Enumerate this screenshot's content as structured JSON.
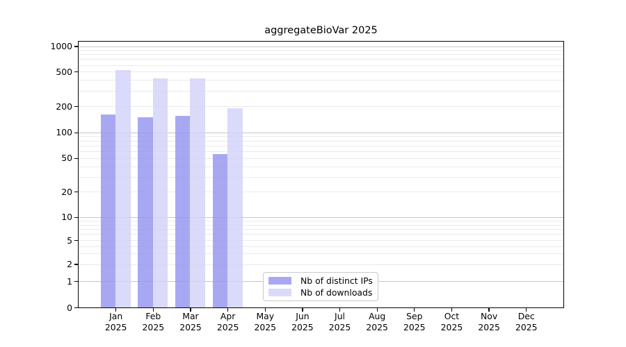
{
  "chart_data": {
    "type": "bar",
    "title": "aggregateBioVar 2025",
    "categories": [
      {
        "month": "Jan",
        "year": "2025"
      },
      {
        "month": "Feb",
        "year": "2025"
      },
      {
        "month": "Mar",
        "year": "2025"
      },
      {
        "month": "Apr",
        "year": "2025"
      },
      {
        "month": "May",
        "year": "2025"
      },
      {
        "month": "Jun",
        "year": "2025"
      },
      {
        "month": "Jul",
        "year": "2025"
      },
      {
        "month": "Aug",
        "year": "2025"
      },
      {
        "month": "Sep",
        "year": "2025"
      },
      {
        "month": "Oct",
        "year": "2025"
      },
      {
        "month": "Nov",
        "year": "2025"
      },
      {
        "month": "Dec",
        "year": "2025"
      }
    ],
    "series": [
      {
        "name": "Nb of distinct IPs",
        "color": "#a8a8f2",
        "values": [
          160,
          150,
          155,
          56,
          0,
          0,
          0,
          0,
          0,
          0,
          0,
          0
        ]
      },
      {
        "name": "Nb of downloads",
        "color": "#dadafa",
        "values": [
          520,
          420,
          420,
          190,
          0,
          0,
          0,
          0,
          0,
          0,
          0,
          0
        ]
      }
    ],
    "yticks": [
      0,
      1,
      2,
      5,
      10,
      20,
      50,
      100,
      200,
      500,
      1000
    ],
    "ylim": [
      0,
      1000
    ],
    "yscale": "log-like",
    "xlabel": "",
    "ylabel": "",
    "grid": "on",
    "legend_position": "bottom-center"
  }
}
